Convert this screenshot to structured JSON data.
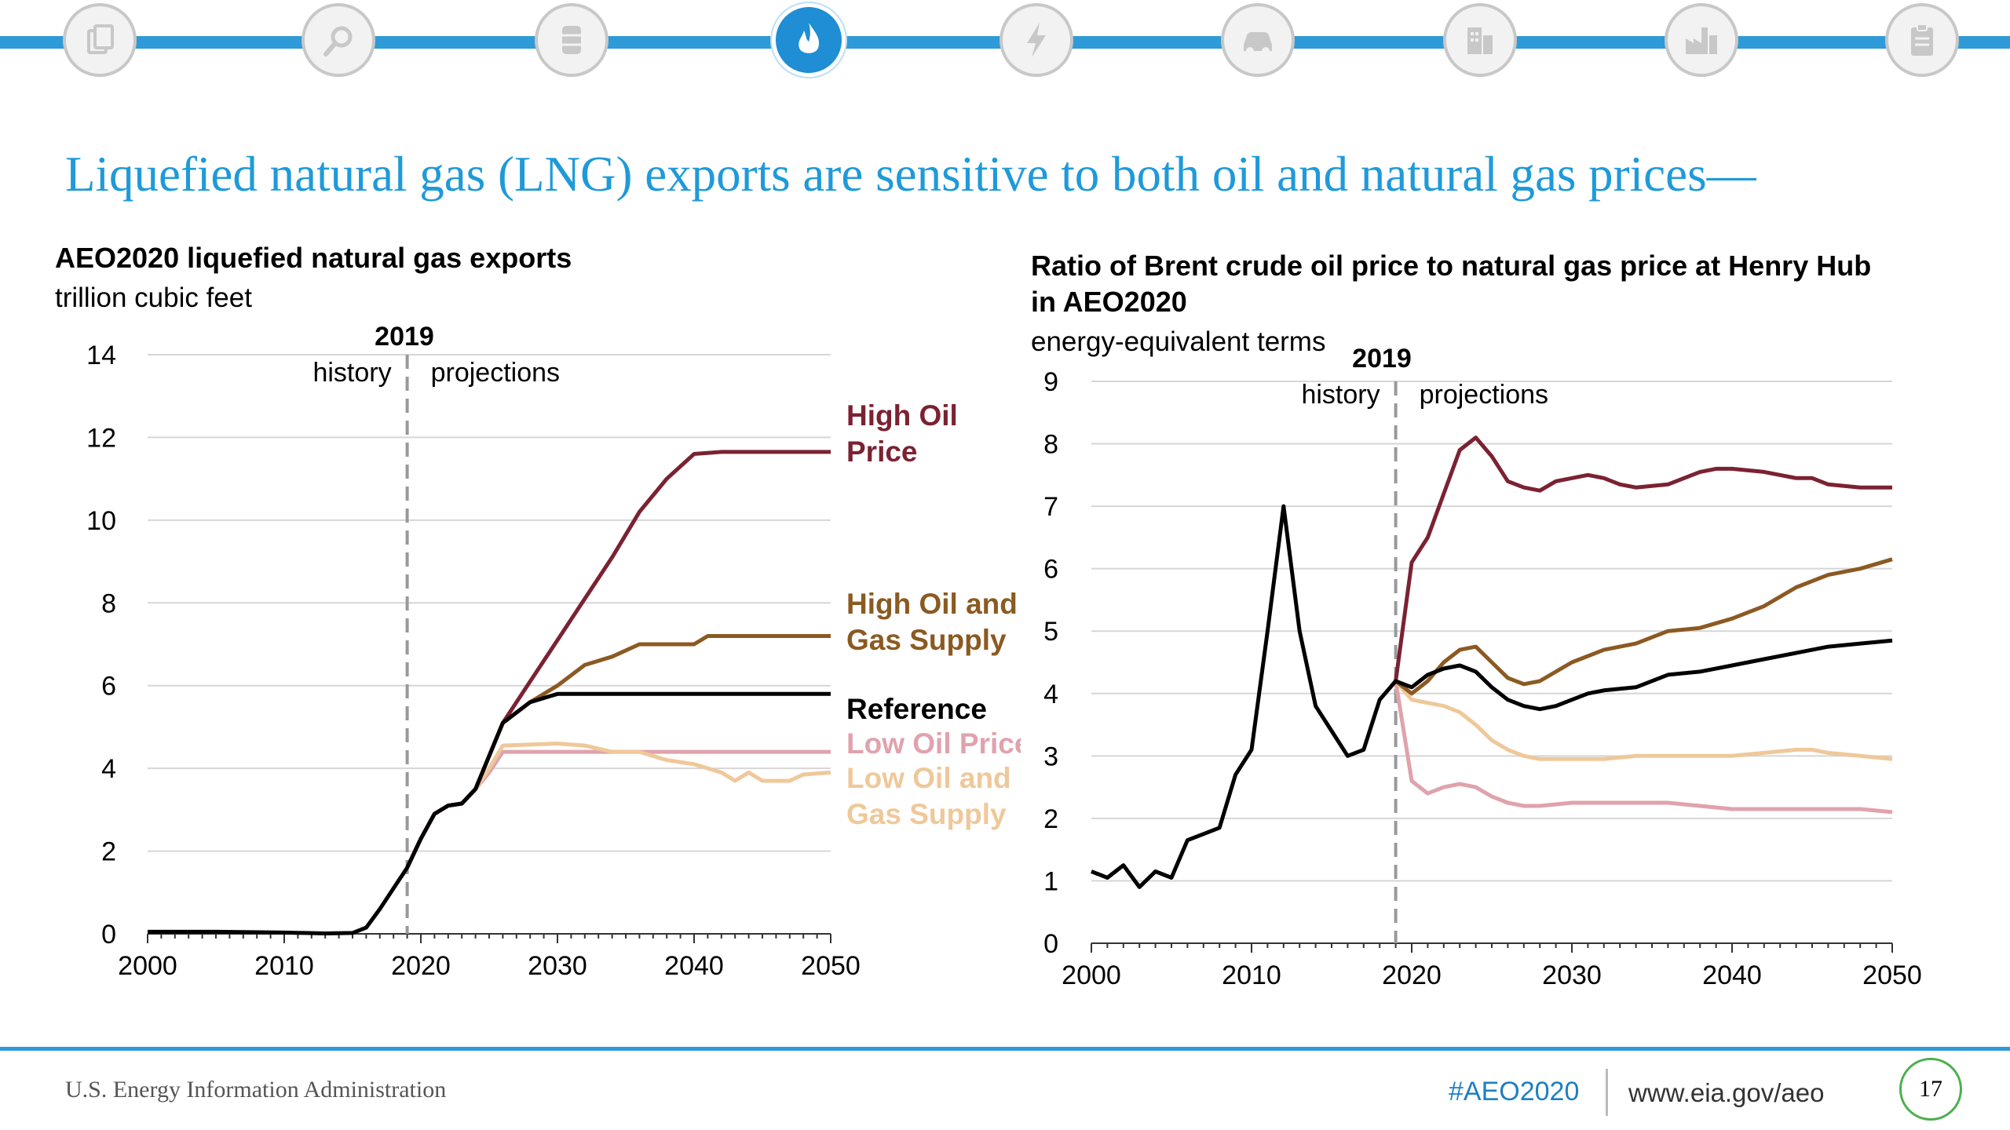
{
  "nav": {
    "icons": [
      {
        "name": "documents-icon",
        "active": false
      },
      {
        "name": "analysis-magnifier-icon",
        "active": false
      },
      {
        "name": "oil-barrel-icon",
        "active": false
      },
      {
        "name": "natural-gas-flame-icon",
        "active": true
      },
      {
        "name": "electricity-bolt-icon",
        "active": false
      },
      {
        "name": "car-icon",
        "active": false
      },
      {
        "name": "buildings-icon",
        "active": false
      },
      {
        "name": "factory-icon",
        "active": false
      },
      {
        "name": "clipboard-icon",
        "active": false
      }
    ]
  },
  "slide": {
    "title": "Liquefied natural gas (LNG) exports are sensitive to both oil and natural gas prices—"
  },
  "colors": {
    "high_oil_price": "#7b2232",
    "high_oil_gas_supply": "#8b5a22",
    "reference": "#000000",
    "low_oil_price": "#e0a2ac",
    "low_oil_gas_supply": "#efc89a",
    "accent": "#1f9ad9"
  },
  "chart_data": [
    {
      "type": "line",
      "title": "AEO2020 liquefied natural gas exports",
      "units": "trillion cubic feet",
      "xlim": [
        2000,
        2050
      ],
      "ylim": [
        0,
        14
      ],
      "x_ticks": [
        "2000",
        "2010",
        "2020",
        "2030",
        "2040",
        "2050"
      ],
      "y_ticks": [
        "0",
        "2",
        "4",
        "6",
        "8",
        "10",
        "12",
        "14"
      ],
      "grid": true,
      "divider": {
        "year": 2019,
        "label": "2019",
        "left_label": "history",
        "right_label": "projections"
      },
      "series": [
        {
          "name": "High Oil Price",
          "label_lines": [
            "High Oil",
            "Price"
          ],
          "color": "#7b2232",
          "points": [
            [
              2019,
              1.6
            ],
            [
              2020,
              2.3
            ],
            [
              2021,
              2.9
            ],
            [
              2022,
              3.1
            ],
            [
              2023,
              3.15
            ],
            [
              2024,
              3.5
            ],
            [
              2025,
              4.3
            ],
            [
              2026,
              5.1
            ],
            [
              2028,
              6.1
            ],
            [
              2030,
              7.1
            ],
            [
              2032,
              8.1
            ],
            [
              2034,
              9.1
            ],
            [
              2036,
              10.2
            ],
            [
              2038,
              11.0
            ],
            [
              2040,
              11.6
            ],
            [
              2042,
              11.65
            ],
            [
              2045,
              11.65
            ],
            [
              2050,
              11.65
            ]
          ]
        },
        {
          "name": "High Oil and Gas Supply",
          "label_lines": [
            "High Oil and",
            "Gas Supply"
          ],
          "color": "#8b5a22",
          "points": [
            [
              2019,
              1.6
            ],
            [
              2020,
              2.3
            ],
            [
              2021,
              2.9
            ],
            [
              2022,
              3.1
            ],
            [
              2023,
              3.15
            ],
            [
              2024,
              3.5
            ],
            [
              2025,
              4.3
            ],
            [
              2026,
              5.1
            ],
            [
              2028,
              5.6
            ],
            [
              2030,
              6.0
            ],
            [
              2032,
              6.5
            ],
            [
              2034,
              6.7
            ],
            [
              2036,
              7.0
            ],
            [
              2038,
              7.0
            ],
            [
              2040,
              7.0
            ],
            [
              2041,
              7.2
            ],
            [
              2045,
              7.2
            ],
            [
              2050,
              7.2
            ]
          ]
        },
        {
          "name": "Reference",
          "label_lines": [
            "Reference"
          ],
          "color": "#000000",
          "points": [
            [
              2000,
              0.05
            ],
            [
              2005,
              0.05
            ],
            [
              2010,
              0.03
            ],
            [
              2013,
              0.01
            ],
            [
              2015,
              0.02
            ],
            [
              2016,
              0.15
            ],
            [
              2017,
              0.6
            ],
            [
              2018,
              1.1
            ],
            [
              2019,
              1.6
            ],
            [
              2020,
              2.3
            ],
            [
              2021,
              2.9
            ],
            [
              2022,
              3.1
            ],
            [
              2023,
              3.15
            ],
            [
              2024,
              3.5
            ],
            [
              2025,
              4.3
            ],
            [
              2026,
              5.1
            ],
            [
              2028,
              5.6
            ],
            [
              2030,
              5.8
            ],
            [
              2035,
              5.8
            ],
            [
              2040,
              5.8
            ],
            [
              2045,
              5.8
            ],
            [
              2050,
              5.8
            ]
          ]
        },
        {
          "name": "Low Oil Price",
          "label_lines": [
            "Low Oil Price"
          ],
          "color": "#e0a2ac",
          "points": [
            [
              2024,
              3.5
            ],
            [
              2025,
              3.9
            ],
            [
              2026,
              4.4
            ],
            [
              2030,
              4.4
            ],
            [
              2035,
              4.4
            ],
            [
              2040,
              4.4
            ],
            [
              2045,
              4.4
            ],
            [
              2050,
              4.4
            ]
          ]
        },
        {
          "name": "Low Oil and Gas Supply",
          "label_lines": [
            "Low Oil and",
            "Gas Supply"
          ],
          "color": "#efc89a",
          "points": [
            [
              2024,
              3.5
            ],
            [
              2025,
              4.0
            ],
            [
              2026,
              4.55
            ],
            [
              2030,
              4.6
            ],
            [
              2032,
              4.55
            ],
            [
              2034,
              4.4
            ],
            [
              2036,
              4.4
            ],
            [
              2038,
              4.2
            ],
            [
              2040,
              4.1
            ],
            [
              2042,
              3.9
            ],
            [
              2043,
              3.7
            ],
            [
              2044,
              3.9
            ],
            [
              2045,
              3.7
            ],
            [
              2047,
              3.7
            ],
            [
              2048,
              3.85
            ],
            [
              2050,
              3.9
            ]
          ]
        }
      ]
    },
    {
      "type": "line",
      "title": "Ratio of Brent crude oil price to natural gas price at Henry Hub in AEO2020",
      "title_lines": [
        "Ratio of Brent crude oil price to natural gas price at Henry Hub",
        "in AEO2020"
      ],
      "units": "energy-equivalent terms",
      "xlim": [
        2000,
        2050
      ],
      "ylim": [
        0,
        9
      ],
      "x_ticks": [
        "2000",
        "2010",
        "2020",
        "2030",
        "2040",
        "2050"
      ],
      "y_ticks": [
        "0",
        "1",
        "2",
        "3",
        "4",
        "5",
        "6",
        "7",
        "8",
        "9"
      ],
      "grid": true,
      "divider": {
        "year": 2019,
        "label": "2019",
        "left_label": "history",
        "right_label": "projections"
      },
      "series": [
        {
          "name": "High Oil Price",
          "color": "#7b2232",
          "points": [
            [
              2019,
              4.2
            ],
            [
              2020,
              6.1
            ],
            [
              2021,
              6.5
            ],
            [
              2022,
              7.2
            ],
            [
              2023,
              7.9
            ],
            [
              2024,
              8.1
            ],
            [
              2025,
              7.8
            ],
            [
              2026,
              7.4
            ],
            [
              2027,
              7.3
            ],
            [
              2028,
              7.25
            ],
            [
              2029,
              7.4
            ],
            [
              2031,
              7.5
            ],
            [
              2032,
              7.45
            ],
            [
              2033,
              7.35
            ],
            [
              2034,
              7.3
            ],
            [
              2036,
              7.35
            ],
            [
              2038,
              7.55
            ],
            [
              2039,
              7.6
            ],
            [
              2040,
              7.6
            ],
            [
              2042,
              7.55
            ],
            [
              2044,
              7.45
            ],
            [
              2045,
              7.45
            ],
            [
              2046,
              7.35
            ],
            [
              2048,
              7.3
            ],
            [
              2050,
              7.3
            ]
          ]
        },
        {
          "name": "High Oil and Gas Supply",
          "color": "#8b5a22",
          "points": [
            [
              2019,
              4.2
            ],
            [
              2020,
              4.0
            ],
            [
              2021,
              4.2
            ],
            [
              2022,
              4.5
            ],
            [
              2023,
              4.7
            ],
            [
              2024,
              4.75
            ],
            [
              2025,
              4.5
            ],
            [
              2026,
              4.25
            ],
            [
              2027,
              4.15
            ],
            [
              2028,
              4.2
            ],
            [
              2030,
              4.5
            ],
            [
              2032,
              4.7
            ],
            [
              2034,
              4.8
            ],
            [
              2036,
              5.0
            ],
            [
              2038,
              5.05
            ],
            [
              2040,
              5.2
            ],
            [
              2042,
              5.4
            ],
            [
              2044,
              5.7
            ],
            [
              2046,
              5.9
            ],
            [
              2048,
              6.0
            ],
            [
              2050,
              6.15
            ]
          ]
        },
        {
          "name": "Reference",
          "color": "#000000",
          "points": [
            [
              2000,
              1.15
            ],
            [
              2001,
              1.05
            ],
            [
              2002,
              1.25
            ],
            [
              2003,
              0.9
            ],
            [
              2004,
              1.15
            ],
            [
              2005,
              1.05
            ],
            [
              2006,
              1.65
            ],
            [
              2007,
              1.75
            ],
            [
              2008,
              1.85
            ],
            [
              2009,
              2.7
            ],
            [
              2010,
              3.1
            ],
            [
              2011,
              5.0
            ],
            [
              2012,
              7.0
            ],
            [
              2013,
              5.0
            ],
            [
              2014,
              3.8
            ],
            [
              2015,
              3.4
            ],
            [
              2016,
              3.0
            ],
            [
              2017,
              3.1
            ],
            [
              2018,
              3.9
            ],
            [
              2019,
              4.2
            ],
            [
              2020,
              4.1
            ],
            [
              2021,
              4.3
            ],
            [
              2022,
              4.4
            ],
            [
              2023,
              4.45
            ],
            [
              2024,
              4.35
            ],
            [
              2025,
              4.1
            ],
            [
              2026,
              3.9
            ],
            [
              2027,
              3.8
            ],
            [
              2028,
              3.75
            ],
            [
              2029,
              3.8
            ],
            [
              2030,
              3.9
            ],
            [
              2031,
              4.0
            ],
            [
              2032,
              4.05
            ],
            [
              2034,
              4.1
            ],
            [
              2036,
              4.3
            ],
            [
              2038,
              4.35
            ],
            [
              2040,
              4.45
            ],
            [
              2042,
              4.55
            ],
            [
              2044,
              4.65
            ],
            [
              2046,
              4.75
            ],
            [
              2048,
              4.8
            ],
            [
              2050,
              4.85
            ]
          ]
        },
        {
          "name": "Low Oil Price",
          "color": "#e0a2ac",
          "points": [
            [
              2019,
              4.2
            ],
            [
              2020,
              2.6
            ],
            [
              2021,
              2.4
            ],
            [
              2022,
              2.5
            ],
            [
              2023,
              2.55
            ],
            [
              2024,
              2.5
            ],
            [
              2025,
              2.35
            ],
            [
              2026,
              2.25
            ],
            [
              2027,
              2.2
            ],
            [
              2028,
              2.2
            ],
            [
              2030,
              2.25
            ],
            [
              2032,
              2.25
            ],
            [
              2034,
              2.25
            ],
            [
              2036,
              2.25
            ],
            [
              2038,
              2.2
            ],
            [
              2040,
              2.15
            ],
            [
              2042,
              2.15
            ],
            [
              2044,
              2.15
            ],
            [
              2046,
              2.15
            ],
            [
              2048,
              2.15
            ],
            [
              2050,
              2.1
            ]
          ]
        },
        {
          "name": "Low Oil and Gas Supply",
          "color": "#efc89a",
          "points": [
            [
              2019,
              4.2
            ],
            [
              2020,
              3.9
            ],
            [
              2021,
              3.85
            ],
            [
              2022,
              3.8
            ],
            [
              2023,
              3.7
            ],
            [
              2024,
              3.5
            ],
            [
              2025,
              3.25
            ],
            [
              2026,
              3.1
            ],
            [
              2027,
              3.0
            ],
            [
              2028,
              2.95
            ],
            [
              2030,
              2.95
            ],
            [
              2032,
              2.95
            ],
            [
              2034,
              3.0
            ],
            [
              2036,
              3.0
            ],
            [
              2038,
              3.0
            ],
            [
              2040,
              3.0
            ],
            [
              2042,
              3.05
            ],
            [
              2044,
              3.1
            ],
            [
              2045,
              3.1
            ],
            [
              2046,
              3.05
            ],
            [
              2048,
              3.0
            ],
            [
              2050,
              2.95
            ]
          ]
        }
      ]
    }
  ],
  "footer": {
    "org": "U.S. Energy Information Administration",
    "hashtag": "#AEO2020",
    "url": "www.eia.gov/aeo",
    "page": "17"
  }
}
